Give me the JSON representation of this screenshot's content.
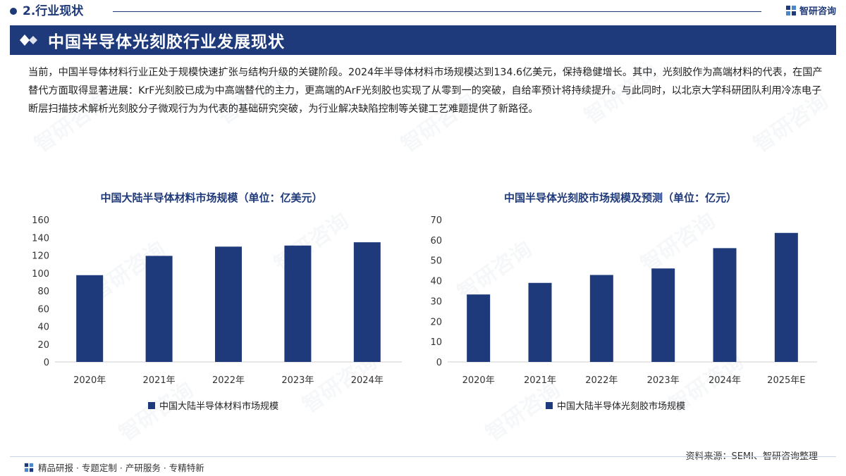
{
  "header": {
    "section_title": "2.行业现状",
    "brand_name": "智研咨询"
  },
  "banner": {
    "title": "中国半导体光刻胶行业发展现状"
  },
  "intro_text": "当前，中国半导体材料行业正处于规模快速扩张与结构升级的关键阶段。2024年半导体材料市场规模达到134.6亿美元，保持稳健增长。其中，光刻胶作为高端材料的代表，在国产替代方面取得显著进展：KrF光刻胶已成为中高端替代的主力，更高端的ArF光刻胶也实现了从零到一的突破，自给率预计将持续提升。与此同时，以北京大学科研团队利用冷冻电子断层扫描技术解析光刻胶分子微观行为为代表的基础研究突破，为行业解决缺陷控制等关键工艺难题提供了新路径。",
  "watermark_text": "智研咨询",
  "colors": {
    "primary": "#1f3a7a",
    "bar": "#1f3a7a"
  },
  "chart_data": [
    {
      "type": "bar",
      "title": "中国大陆半导体材料市场规模（单位：亿美元）",
      "categories": [
        "2020年",
        "2021年",
        "2022年",
        "2023年",
        "2024年"
      ],
      "series": [
        {
          "name": "中国大陆半导体材料市场规模",
          "values": [
            97.6,
            119.3,
            129.7,
            130.9,
            134.6
          ]
        }
      ],
      "ylim": [
        0,
        160
      ],
      "yticks": [
        0,
        20,
        40,
        60,
        80,
        100,
        120,
        140,
        160
      ],
      "grid": false,
      "legend": "bottom"
    },
    {
      "type": "bar",
      "title": "中国半导体光刻胶市场规模及预测（单位：亿元）",
      "categories": [
        "2020年",
        "2021年",
        "2022年",
        "2023年",
        "2024年",
        "2025年E"
      ],
      "series": [
        {
          "name": "中国大陆半导体光刻胶市场规模",
          "values": [
            33.2,
            38.9,
            42.8,
            46.0,
            56.0,
            63.5
          ]
        }
      ],
      "ylim": [
        0,
        70
      ],
      "yticks": [
        0,
        10,
        20,
        30,
        40,
        50,
        60,
        70
      ],
      "grid": false,
      "legend": "bottom"
    }
  ],
  "footer": {
    "left_text": "精品研报 · 专题定制 · 产研服务 · 专精特新",
    "source": "资料来源：SEMI、智研咨询整理"
  }
}
